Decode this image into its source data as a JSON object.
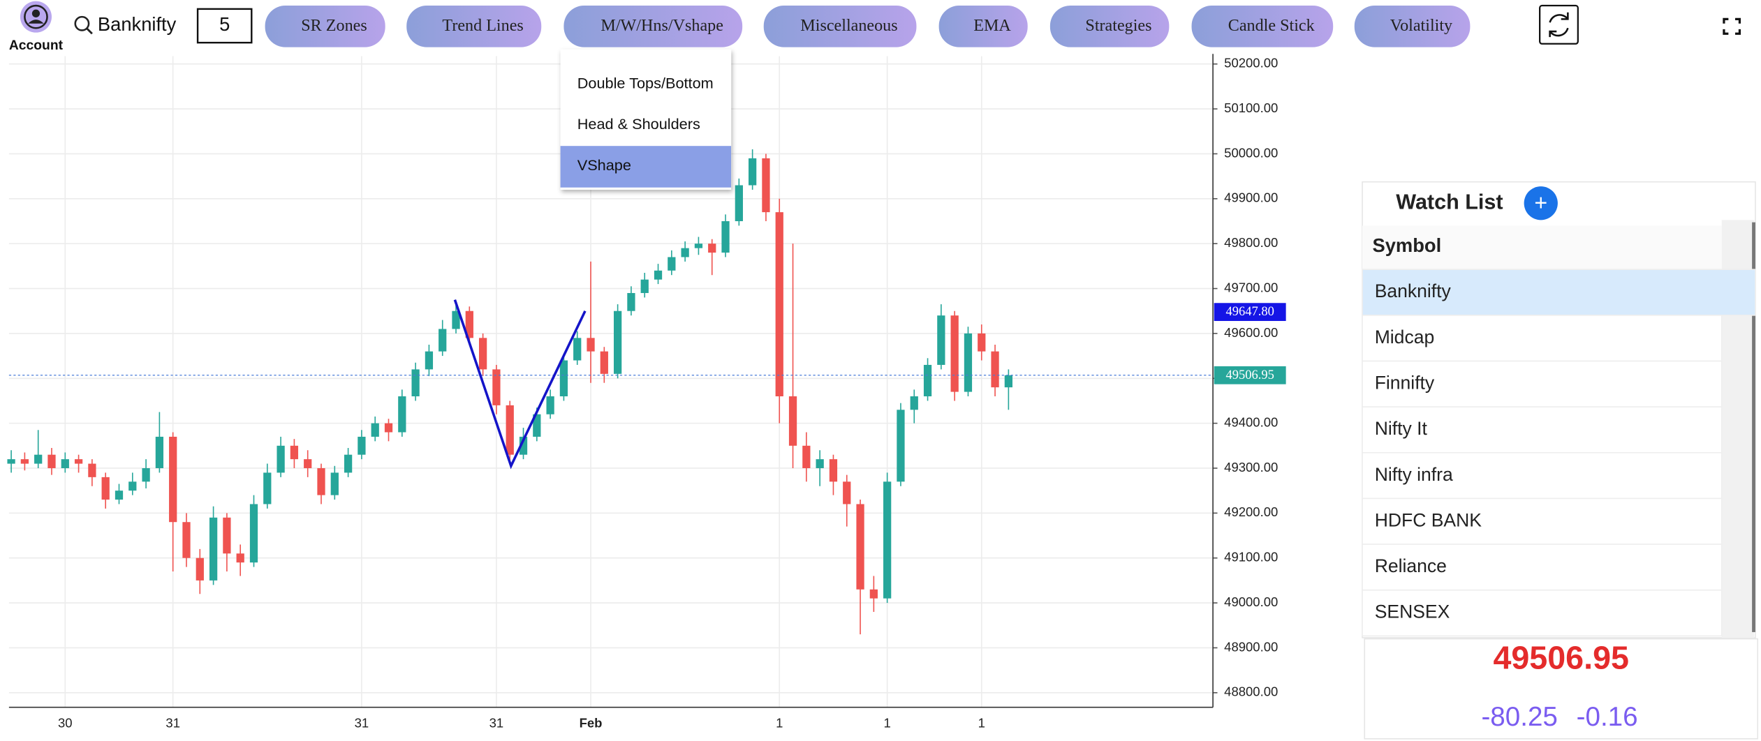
{
  "toolbar": {
    "account": "Account",
    "symbol": "Banknifty",
    "interval": 5,
    "menus": [
      "SR Zones",
      "Trend Lines",
      "M/W/Hns/Vshape",
      "Miscellaneous",
      "EMA",
      "Strategies",
      "Candle Stick",
      "Volatility"
    ]
  },
  "dropdown": {
    "items": [
      "Double Tops/Bottom",
      "Head & Shoulders",
      "VShape"
    ],
    "selected": 2
  },
  "chart_data": {
    "type": "candlestick",
    "categories": [
      null,
      null,
      null,
      null,
      "30",
      null,
      null,
      null,
      null,
      null,
      null,
      null,
      "31",
      null,
      null,
      null,
      null,
      null,
      null,
      null,
      null,
      null,
      null,
      null,
      null,
      null,
      "31",
      null,
      null,
      null,
      null,
      null,
      null,
      null,
      null,
      null,
      "31",
      null,
      null,
      null,
      null,
      null,
      null,
      "Feb",
      null,
      null,
      null,
      null,
      null,
      null,
      null,
      null,
      null,
      null,
      null,
      null,
      null,
      "1",
      null,
      null,
      null,
      null,
      null,
      null,
      null,
      "1",
      null,
      null,
      null,
      null,
      null,
      null,
      "1",
      null,
      null
    ],
    "open": [
      49310,
      49320,
      49310,
      49330,
      49300,
      49320,
      49310,
      49280,
      49230,
      49250,
      49270,
      49300,
      49370,
      49180,
      49100,
      49050,
      49190,
      49110,
      49090,
      49220,
      49290,
      49350,
      49320,
      49300,
      49240,
      49290,
      49330,
      49370,
      49400,
      49380,
      49460,
      49520,
      49560,
      49610,
      49650,
      49590,
      49520,
      49440,
      49330,
      49370,
      49420,
      49460,
      49540,
      49590,
      49560,
      49510,
      49650,
      49690,
      49720,
      49740,
      49770,
      49790,
      49800,
      49780,
      49850,
      49930,
      49990,
      49870,
      49460,
      49350,
      49300,
      49320,
      49270,
      49220,
      49030,
      49010,
      49270,
      49430,
      49460,
      49530,
      49640,
      49470,
      49600,
      49560,
      49480
    ],
    "high": [
      49340,
      49335,
      49385,
      49345,
      49335,
      49330,
      49320,
      49290,
      49265,
      49290,
      49320,
      49425,
      49380,
      49200,
      49120,
      49215,
      49200,
      49130,
      49240,
      49310,
      49370,
      49365,
      49340,
      49310,
      49305,
      49345,
      49385,
      49415,
      49410,
      49475,
      49535,
      49575,
      49630,
      49670,
      49660,
      49600,
      49530,
      49450,
      49390,
      49435,
      49475,
      49555,
      49605,
      49760,
      49570,
      49665,
      49705,
      49735,
      49755,
      49785,
      49805,
      49815,
      49810,
      49865,
      49945,
      50010,
      50000,
      49900,
      49800,
      49380,
      49340,
      49330,
      49285,
      49230,
      49060,
      49290,
      49445,
      49475,
      49545,
      49665,
      49650,
      49615,
      49620,
      49575,
      49520
    ],
    "low": [
      49290,
      49295,
      49300,
      49285,
      49290,
      49290,
      49260,
      49210,
      49220,
      49240,
      49255,
      49290,
      49070,
      49080,
      49020,
      49040,
      49070,
      49060,
      49080,
      49210,
      49280,
      49300,
      49280,
      49220,
      49230,
      49280,
      49320,
      49360,
      49360,
      49370,
      49450,
      49505,
      49550,
      49600,
      49575,
      49505,
      49420,
      49310,
      49320,
      49360,
      49410,
      49450,
      49530,
      49490,
      49490,
      49500,
      49640,
      49680,
      49710,
      49730,
      49760,
      49775,
      49730,
      49770,
      49840,
      49920,
      49850,
      49400,
      49300,
      49270,
      49260,
      49240,
      49170,
      48930,
      48980,
      49000,
      49260,
      49400,
      49450,
      49520,
      49450,
      49460,
      49540,
      49460,
      49430
    ],
    "close": [
      49320,
      49310,
      49330,
      49300,
      49320,
      49310,
      49280,
      49230,
      49250,
      49270,
      49300,
      49370,
      49180,
      49100,
      49050,
      49190,
      49110,
      49090,
      49220,
      49290,
      49350,
      49320,
      49300,
      49240,
      49290,
      49330,
      49370,
      49400,
      49380,
      49460,
      49520,
      49560,
      49610,
      49650,
      49590,
      49520,
      49440,
      49330,
      49370,
      49420,
      49460,
      49540,
      49590,
      49560,
      49510,
      49650,
      49690,
      49720,
      49740,
      49770,
      49790,
      49800,
      49780,
      49850,
      49930,
      49990,
      49870,
      49460,
      49350,
      49300,
      49320,
      49270,
      49220,
      49030,
      49010,
      49270,
      49430,
      49460,
      49530,
      49640,
      49470,
      49600,
      49560,
      49480,
      49506.95
    ],
    "up_color": "#26a69a",
    "down_color": "#ef5350",
    "ylim": [
      48767.5,
      50217.5
    ],
    "yticks": [
      {
        "value": 48800,
        "label": "48800.00"
      },
      {
        "value": 48900,
        "label": "48900.00"
      },
      {
        "value": 49000,
        "label": "49000.00"
      },
      {
        "value": 49100,
        "label": "49100.00"
      },
      {
        "value": 49200,
        "label": "49200.00"
      },
      {
        "value": 49300,
        "label": "49300.00"
      },
      {
        "value": 49400,
        "label": "49400.00"
      },
      {
        "value": 49500,
        "label": "49500.00"
      },
      {
        "value": 49600,
        "label": "49600.00"
      },
      {
        "value": 49700,
        "label": "49700.00"
      },
      {
        "value": 49800,
        "label": "49800.00"
      },
      {
        "value": 49900,
        "label": "49900.00"
      },
      {
        "value": 50000,
        "label": "50000.00"
      },
      {
        "value": 50100,
        "label": "50100.00"
      },
      {
        "value": 50200,
        "label": "50200.00"
      }
    ],
    "grid": true,
    "price_lines": [
      {
        "value": 49647.8,
        "label": "49647.80",
        "color": "#1515e6",
        "dotted": false
      },
      {
        "value": 49506.95,
        "label": "49506.95",
        "color": "#26a69a",
        "dotted": true
      }
    ]
  },
  "watchlist": {
    "title": "Watch List",
    "add": "+",
    "header": "Symbol",
    "rows": [
      "Banknifty",
      "Midcap",
      "Finnifty",
      "Nifty It",
      "Nifty infra",
      "HDFC BANK",
      "Reliance",
      "SENSEX"
    ],
    "selected": 0
  },
  "quote": {
    "price": 49506.95,
    "change": -80.25,
    "change_pct": -0.16
  }
}
